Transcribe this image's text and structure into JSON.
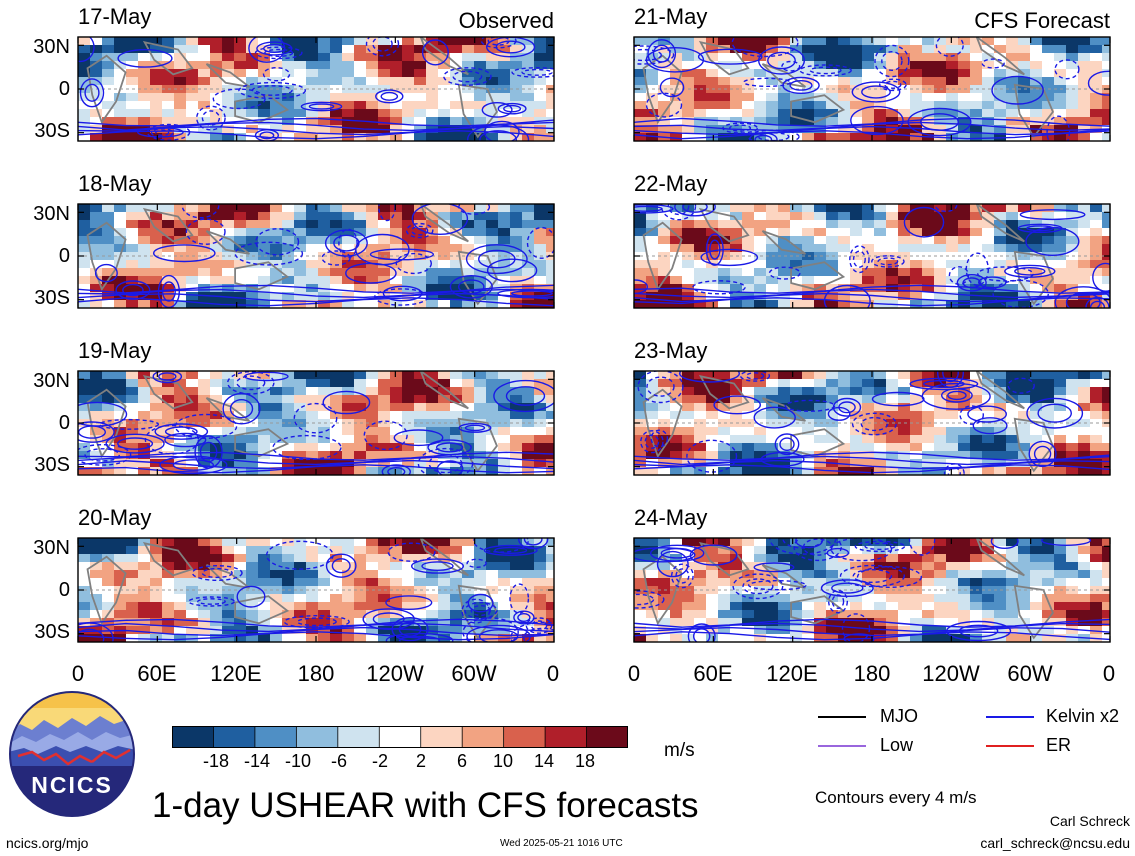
{
  "chart_data": {
    "type": "heatmap",
    "title": "1-day USHEAR with CFS forecasts",
    "panels": [
      {
        "date": "17-May",
        "label": "Observed"
      },
      {
        "date": "18-May",
        "label": ""
      },
      {
        "date": "19-May",
        "label": ""
      },
      {
        "date": "20-May",
        "label": ""
      },
      {
        "date": "21-May",
        "label": "CFS Forecast"
      },
      {
        "date": "22-May",
        "label": ""
      },
      {
        "date": "23-May",
        "label": ""
      },
      {
        "date": "24-May",
        "label": ""
      }
    ],
    "lat_ticks": [
      "30N",
      "0",
      "30S"
    ],
    "lon_ticks": [
      "0",
      "60E",
      "120E",
      "180",
      "120W",
      "60W",
      "0"
    ],
    "colorbar": {
      "ticks": [
        "-18",
        "-14",
        "-10",
        "-6",
        "-2",
        "2",
        "6",
        "10",
        "14",
        "18"
      ],
      "colors": [
        "#0b3768",
        "#1f5fa0",
        "#4f8fc5",
        "#90bede",
        "#cfe3ef",
        "#ffffff",
        "#fcd5c1",
        "#f2a382",
        "#d9614d",
        "#b01f2a",
        "#6b0a1a"
      ],
      "units": "m/s"
    },
    "legend": [
      {
        "label": "MJO",
        "color": "#000000"
      },
      {
        "label": "Kelvin x2",
        "color": "#1a1ae6"
      },
      {
        "label": "Low",
        "color": "#9966dd"
      },
      {
        "label": "ER",
        "color": "#e02020"
      }
    ],
    "contour_note": "Contours every 4 m/s"
  },
  "logo": {
    "text": "NCICS"
  },
  "footer": {
    "site": "ncics.org/mjo",
    "timestamp": "Wed 2025-05-21 1016 UTC",
    "author": "Carl Schreck",
    "email": "carl_schreck@ncsu.edu"
  }
}
